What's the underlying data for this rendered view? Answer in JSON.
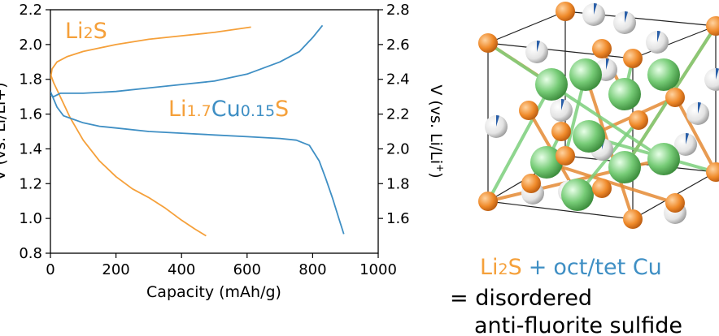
{
  "chart_data": {
    "type": "line",
    "xlabel": "Capacity (mAh/g)",
    "xlim": [
      0,
      1000
    ],
    "xticks": [
      0,
      200,
      400,
      600,
      800,
      1000
    ],
    "left_axis": {
      "label": "V (vs. Li/Li+)",
      "ylim": [
        0.8,
        2.2
      ],
      "ticks": [
        0.8,
        1.0,
        1.2,
        1.4,
        1.6,
        1.8,
        2.0,
        2.2
      ],
      "applies_to": "Li2S"
    },
    "right_axis": {
      "label": "V (vs. Li/Li+)",
      "ylim": [
        1.4,
        2.8
      ],
      "ticks": [
        1.6,
        1.8,
        2.0,
        2.2,
        2.4,
        2.6,
        2.8
      ],
      "applies_to": "Li1.7Cu0.15S"
    },
    "grid": false,
    "series": [
      {
        "name": "Li2S",
        "axis": "left",
        "color": "#f5a03a",
        "segments": [
          {
            "x": [
              0,
              5,
              20,
              50,
              100,
              150,
              200,
              300,
              400,
              500,
              612
            ],
            "y": [
              1.8,
              1.86,
              1.9,
              1.93,
              1.96,
              1.98,
              2.0,
              2.03,
              2.05,
              2.07,
              2.1
            ]
          },
          {
            "x": [
              0,
              10,
              30,
              60,
              100,
              150,
              200,
              250,
              300,
              350,
              400,
              440,
              475
            ],
            "y": [
              1.83,
              1.78,
              1.7,
              1.58,
              1.45,
              1.33,
              1.24,
              1.17,
              1.12,
              1.06,
              0.99,
              0.94,
              0.9
            ]
          }
        ]
      },
      {
        "name": "Li1.7Cu0.15S",
        "axis": "right",
        "color": "#3f8fc4",
        "segments": [
          {
            "x": [
              0,
              10,
              30,
              60,
              100,
              200,
              300,
              400,
              500,
              600,
              700,
              760,
              800,
              830
            ],
            "y": [
              2.31,
              2.3,
              2.32,
              2.32,
              2.32,
              2.33,
              2.35,
              2.37,
              2.39,
              2.43,
              2.5,
              2.56,
              2.64,
              2.71
            ]
          },
          {
            "x": [
              0,
              20,
              40,
              70,
              100,
              150,
              200,
              300,
              400,
              500,
              600,
              700,
              750,
              790,
              820,
              840,
              860,
              880,
              895
            ],
            "y": [
              2.33,
              2.24,
              2.19,
              2.17,
              2.15,
              2.13,
              2.12,
              2.1,
              2.09,
              2.08,
              2.07,
              2.06,
              2.05,
              2.02,
              1.93,
              1.83,
              1.72,
              1.6,
              1.51
            ]
          }
        ]
      }
    ],
    "annotations": [
      {
        "text": "Li2S",
        "color": "#f5a03a"
      },
      {
        "text": "Li1.7Cu0.15S",
        "color_li": "#f5a03a",
        "color_cu": "#3f8fc4"
      }
    ]
  },
  "labels": {
    "left_tick_labels": [
      "0.8",
      "1.0",
      "1.2",
      "1.4",
      "1.6",
      "1.8",
      "2.0",
      "2.2"
    ],
    "right_tick_labels": [
      "1.6",
      "1.8",
      "2.0",
      "2.2",
      "2.4",
      "2.6",
      "2.8"
    ],
    "x_tick_labels": [
      "0",
      "200",
      "400",
      "600",
      "800",
      "1000"
    ],
    "xlabel": "Capacity (mAh/g)",
    "left_ylabel": "V (vs. Li/Li+)",
    "right_ylabel_main": "V (vs. Li/Li",
    "right_ylabel_sup": "+",
    "right_ylabel_close": ")",
    "anno_li2s": {
      "li": "Li",
      "sub": "2",
      "s": "S"
    },
    "anno_cu": {
      "li": "Li",
      "sub1": "1.7",
      "cu": "Cu",
      "sub2": "0.15",
      "s": "S"
    }
  },
  "legend_text": {
    "part1": "Li",
    "part1_sub": "2",
    "part1_end": "S",
    "plus": "+",
    "part2": "oct/tet Cu",
    "line2": "= disordered",
    "line3": "anti-fluorite sulfide",
    "colors": {
      "li2s": "#f5a03a",
      "cu": "#3f8fc4",
      "text": "#000000"
    }
  },
  "crystal": {
    "atoms": {
      "li": "#f09030",
      "s": "#66c266",
      "cu_site": "#e6e6e6"
    }
  }
}
